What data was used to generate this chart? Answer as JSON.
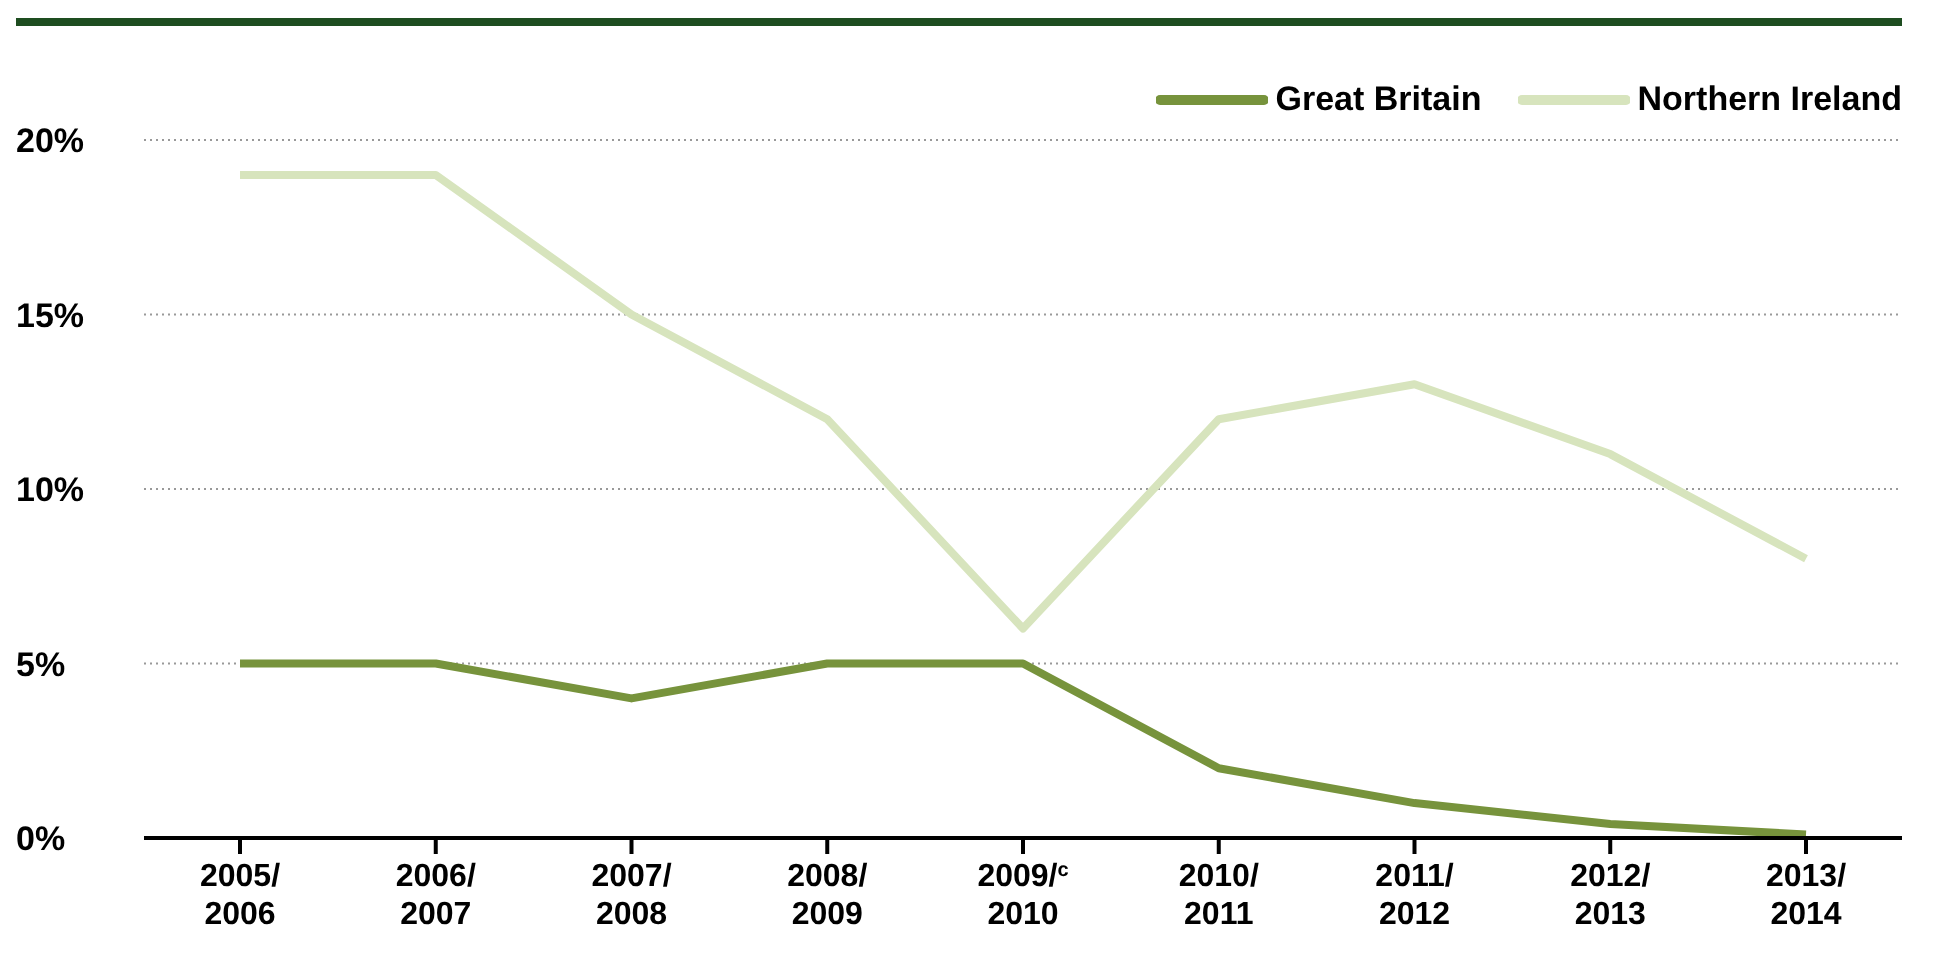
{
  "chart_data": {
    "type": "line",
    "categories": [
      "2005/\n2006",
      "2006/\n2007",
      "2007/\n2008",
      "2008/\n2009",
      "2009/$^{c}$\n2010",
      "2010/\n2011",
      "2011/\n2012",
      "2012/\n2013",
      "2013/\n2014"
    ],
    "series": [
      {
        "name": "Great Britain",
        "color": "#77933c",
        "values": [
          5,
          5,
          4,
          5,
          5,
          2,
          1,
          0.4,
          0.1
        ]
      },
      {
        "name": "Northern Ireland",
        "color": "#d7e4bd",
        "values": [
          19,
          19,
          15,
          12,
          6,
          12,
          13,
          11,
          8
        ]
      }
    ],
    "ylim": [
      0,
      20
    ],
    "yticks": [
      {
        "value": 0,
        "label": "0%"
      },
      {
        "value": 5,
        "label": "5%"
      },
      {
        "value": 10,
        "label": "10%"
      },
      {
        "value": 15,
        "label": "15%"
      },
      {
        "value": 20,
        "label": "20%"
      }
    ],
    "grid": "y",
    "legend": "top right",
    "marker": "none",
    "line_style": "solid"
  }
}
